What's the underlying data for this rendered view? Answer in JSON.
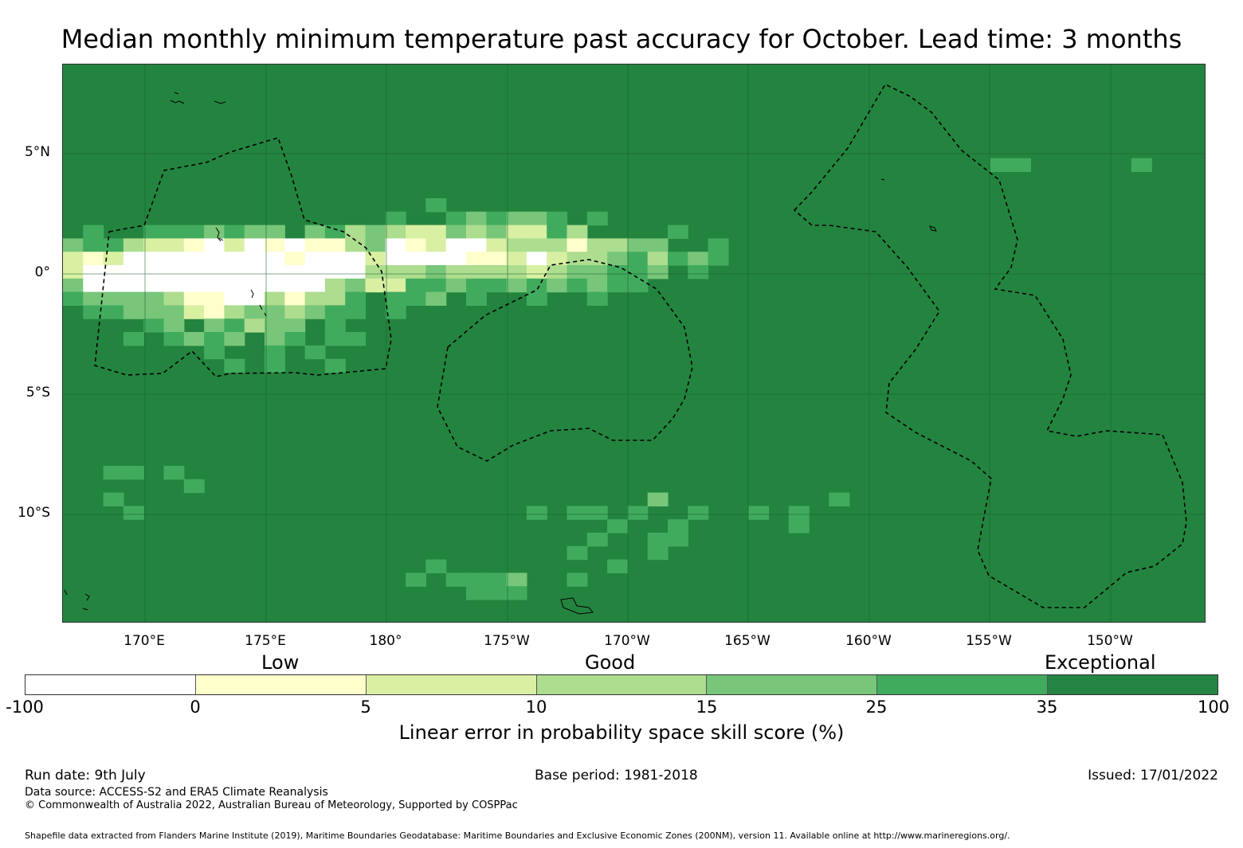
{
  "title": "Median monthly minimum temperature past accuracy for October. Lead time: 3 months",
  "map": {
    "lat_labels": [
      "5°N",
      "0°",
      "5°S",
      "10°S"
    ],
    "lon_labels": [
      "170°E",
      "175°E",
      "180°",
      "175°W",
      "170°W",
      "165°W",
      "160°W",
      "155°W",
      "150°W"
    ]
  },
  "legend": {
    "categories": [
      "Low",
      "Good",
      "Exceptional"
    ],
    "title": "Linear error in probability space skill score (%)",
    "ticks": [
      "-100",
      "0",
      "5",
      "10",
      "15",
      "25",
      "35",
      "100"
    ],
    "colors": [
      "#ffffff",
      "#ffffcc",
      "#d9f0a3",
      "#addd8e",
      "#78c679",
      "#41ab5d",
      "#238443"
    ]
  },
  "footer": {
    "run_date": "Run date: 9th July",
    "base_period": "Base period: 1981-2018",
    "issued": "Issued: 17/01/2022",
    "data_source": "Data source: ACCESS-S2 and ERA5 Climate Reanalysis",
    "copyright": "© Commonwealth of Australia 2022, Australian Bureau of Meteorology, Supported by COSPPac",
    "shapefile": "Shapefile data extracted from Flanders Marine Institute (2019), Maritime Boundaries Geodatabase: Maritime Boundaries and Exclusive Economic Zones (200NM), version 11. Available online at http://www.marineregions.org/."
  }
}
